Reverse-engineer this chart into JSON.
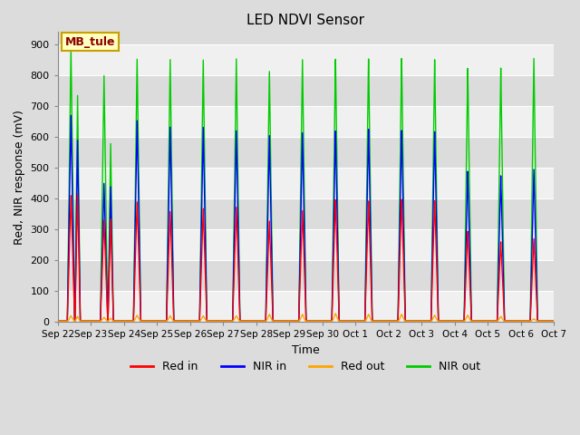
{
  "title": "LED NDVI Sensor",
  "xlabel": "Time",
  "ylabel": "Red, NIR response (mV)",
  "ylim": [
    0,
    940
  ],
  "yticks": [
    0,
    100,
    200,
    300,
    400,
    500,
    600,
    700,
    800,
    900
  ],
  "annotation_text": "MB_tule",
  "annotation_color": "#8B0000",
  "annotation_bg": "#FFFFC0",
  "annotation_border": "#C8A000",
  "colors": {
    "red_in": "#FF0000",
    "nir_in": "#0000FF",
    "red_out": "#FFA500",
    "nir_out": "#00CC00"
  },
  "legend_labels": [
    "Red in",
    "NIR in",
    "Red out",
    "NIR out"
  ],
  "background_color": "#DCDCDC",
  "axes_bg": "#DCDCDC",
  "band_light": "#F0F0F0",
  "band_dark": "#DCDCDC",
  "grid_color": "#FFFFFF",
  "num_days": 15,
  "date_labels": [
    "Sep 22",
    "Sep 23",
    "Sep 24",
    "Sep 25",
    "Sep 26",
    "Sep 27",
    "Sep 28",
    "Sep 29",
    "Sep 30",
    "Oct 1",
    "Oct 2",
    "Oct 3",
    "Oct 4",
    "Oct 5",
    "Oct 6",
    "Oct 7"
  ],
  "red_in_peaks": [
    410,
    330,
    390,
    360,
    370,
    375,
    330,
    365,
    400,
    395,
    400,
    395,
    295,
    260,
    270
  ],
  "nir_in_peaks": [
    670,
    450,
    655,
    635,
    635,
    625,
    610,
    620,
    625,
    630,
    625,
    620,
    490,
    475,
    495
  ],
  "red_out_peaks": [
    20,
    15,
    22,
    20,
    20,
    20,
    25,
    25,
    28,
    25,
    25,
    22,
    22,
    18,
    10
  ],
  "nir_out_peaks": [
    890,
    800,
    855,
    855,
    855,
    860,
    820,
    860,
    860,
    860,
    860,
    855,
    825,
    825,
    855
  ],
  "red_in_peaks2": [
    415,
    330,
    0,
    0,
    0,
    0,
    0,
    0,
    0,
    0,
    0,
    0,
    0,
    0,
    0
  ],
  "nir_out_peaks2": [
    735,
    590,
    0,
    0,
    0,
    0,
    0,
    0,
    0,
    0,
    0,
    0,
    0,
    0,
    0
  ]
}
